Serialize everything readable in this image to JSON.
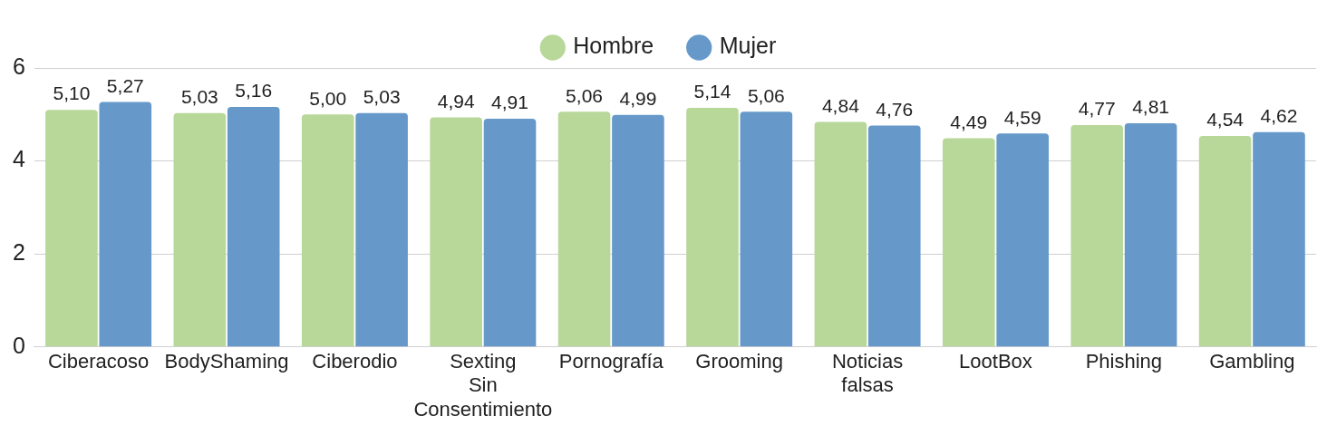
{
  "chart_data": {
    "type": "bar",
    "categories": [
      "Ciberacoso",
      "BodyShaming",
      "Ciberodio",
      "Sexting Sin Consentimiento",
      "Pornografía",
      "Grooming",
      "Noticias falsas",
      "LootBox",
      "Phishing",
      "Gambling"
    ],
    "series": [
      {
        "name": "Hombre",
        "color": "#b8d89a",
        "values": [
          5.1,
          5.03,
          5.0,
          4.94,
          5.06,
          5.14,
          4.84,
          4.49,
          4.77,
          4.54
        ],
        "value_labels": [
          "5,10",
          "5,03",
          "5,00",
          "4,94",
          "5,06",
          "5,14",
          "4,84",
          "4,49",
          "4,77",
          "4,54"
        ]
      },
      {
        "name": "Mujer",
        "color": "#6699c9",
        "values": [
          5.27,
          5.16,
          5.03,
          4.91,
          4.99,
          5.06,
          4.76,
          4.59,
          4.81,
          4.62
        ],
        "value_labels": [
          "5,27",
          "5,16",
          "5,03",
          "4,91",
          "4,99",
          "5,06",
          "4,76",
          "4,59",
          "4,81",
          "4,62"
        ]
      }
    ],
    "ylim": [
      0,
      6
    ],
    "yticks": [
      0,
      2,
      4,
      6
    ],
    "grid": "y",
    "legend": "top"
  }
}
